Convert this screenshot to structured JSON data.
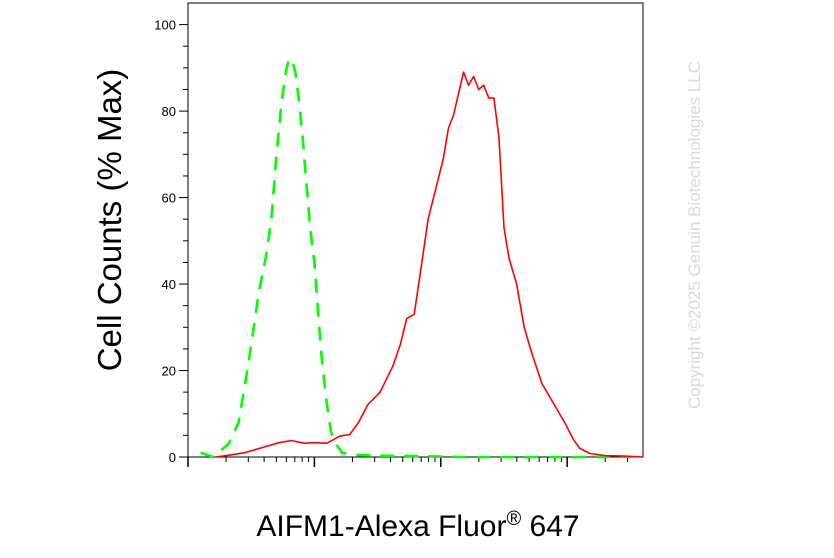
{
  "chart_data": {
    "type": "line",
    "title": "",
    "xlabel_main": "AIFM1-Alexa Fluor",
    "xlabel_sup": "®",
    "xlabel_tail": " 647",
    "ylabel": "Cell Counts (% Max)",
    "ylim": [
      0,
      105
    ],
    "yticks": [
      "0",
      "20",
      "40",
      "60",
      "80",
      "100"
    ],
    "ytick_values": [
      0,
      20,
      40,
      60,
      80,
      100
    ],
    "x_scale": "log",
    "x_decades": [
      1,
      2,
      3
    ],
    "grid": false,
    "series": [
      {
        "color": "#00ff00",
        "dashed": true,
        "points": [
          [
            0.1,
            1
          ],
          [
            0.2,
            0
          ],
          [
            0.32,
            3
          ],
          [
            0.4,
            8
          ],
          [
            0.48,
            22
          ],
          [
            0.56,
            38
          ],
          [
            0.62,
            47
          ],
          [
            0.66,
            55
          ],
          [
            0.7,
            70
          ],
          [
            0.74,
            82
          ],
          [
            0.78,
            90
          ],
          [
            0.8,
            92
          ],
          [
            0.82,
            92
          ],
          [
            0.85,
            89
          ],
          [
            0.88,
            82
          ],
          [
            0.91,
            73
          ],
          [
            0.94,
            62
          ],
          [
            0.97,
            52
          ],
          [
            1.0,
            45
          ],
          [
            1.03,
            33
          ],
          [
            1.06,
            22
          ],
          [
            1.1,
            12
          ],
          [
            1.13,
            6
          ],
          [
            1.17,
            3
          ],
          [
            1.22,
            1
          ],
          [
            1.3,
            0.5
          ],
          [
            1.5,
            0.3
          ],
          [
            1.8,
            0.2
          ],
          [
            2.2,
            0
          ],
          [
            2.6,
            0
          ],
          [
            3.2,
            0
          ],
          [
            3.5,
            0
          ]
        ]
      },
      {
        "color": "#ff0000",
        "dashed": false,
        "points": [
          [
            0.22,
            0
          ],
          [
            0.3,
            0.3
          ],
          [
            0.45,
            1
          ],
          [
            0.6,
            2.3
          ],
          [
            0.72,
            3.3
          ],
          [
            0.82,
            3.8
          ],
          [
            0.92,
            3.2
          ],
          [
            1.0,
            3.3
          ],
          [
            1.1,
            3.2
          ],
          [
            1.2,
            4.8
          ],
          [
            1.28,
            5.2
          ],
          [
            1.35,
            8
          ],
          [
            1.42,
            12
          ],
          [
            1.52,
            15
          ],
          [
            1.62,
            21
          ],
          [
            1.68,
            26
          ],
          [
            1.73,
            32
          ],
          [
            1.79,
            33
          ],
          [
            1.84,
            43
          ],
          [
            1.9,
            55
          ],
          [
            1.96,
            62
          ],
          [
            2.02,
            69
          ],
          [
            2.06,
            76
          ],
          [
            2.1,
            79
          ],
          [
            2.14,
            84
          ],
          [
            2.18,
            89
          ],
          [
            2.22,
            86
          ],
          [
            2.26,
            88
          ],
          [
            2.3,
            85
          ],
          [
            2.34,
            86
          ],
          [
            2.38,
            83
          ],
          [
            2.42,
            83
          ],
          [
            2.46,
            74
          ],
          [
            2.5,
            53
          ],
          [
            2.54,
            46
          ],
          [
            2.6,
            40
          ],
          [
            2.66,
            30
          ],
          [
            2.72,
            24
          ],
          [
            2.8,
            17
          ],
          [
            2.9,
            12
          ],
          [
            2.98,
            8
          ],
          [
            3.05,
            4
          ],
          [
            3.1,
            2
          ],
          [
            3.18,
            0.8
          ],
          [
            3.3,
            0.3
          ],
          [
            3.45,
            0.2
          ],
          [
            3.6,
            0
          ]
        ]
      }
    ]
  },
  "watermark": "Copyright ©2025 Genuin Biotechnologies LLC"
}
